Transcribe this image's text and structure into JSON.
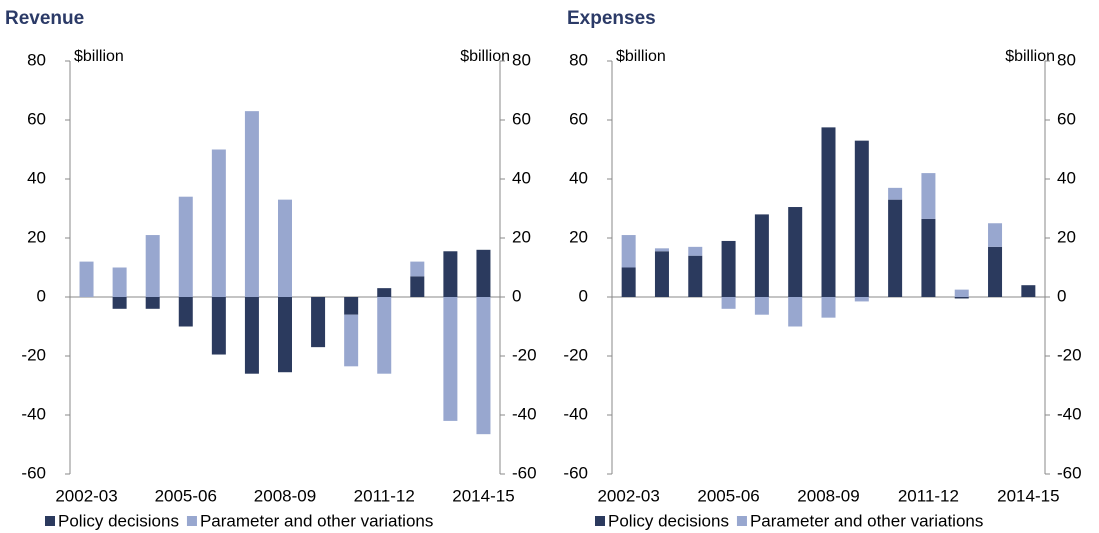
{
  "chart_data": [
    {
      "type": "bar",
      "stacked": true,
      "title": "Revenue",
      "y_label": "$billion",
      "y2_label": "$billion",
      "categories": [
        "2002-03",
        null,
        null,
        "2005-06",
        null,
        null,
        "2008-09",
        null,
        null,
        "2011-12",
        null,
        null,
        "2014-15"
      ],
      "series": [
        {
          "name": "Policy decisions",
          "color": "#2b3a5e",
          "values": [
            0,
            -4,
            -4,
            -10,
            -19.5,
            -26,
            -25.5,
            -17,
            -6,
            3,
            7,
            15.5,
            16
          ]
        },
        {
          "name": "Parameter and other variations",
          "color": "#98a7cf",
          "values": [
            12,
            10,
            21,
            34,
            50,
            63,
            33,
            0,
            -17.5,
            -26,
            5,
            -42,
            -46.5
          ]
        }
      ],
      "ylim": [
        -60,
        80
      ],
      "yticks": [
        -60,
        -40,
        -20,
        0,
        20,
        40,
        60,
        80
      ],
      "y2lim": [
        -60,
        80
      ],
      "y2ticks": [
        -60,
        -40,
        -20,
        0,
        20,
        40,
        60,
        80
      ]
    },
    {
      "type": "bar",
      "stacked": true,
      "title": "Expenses",
      "y_label": "$billion",
      "y2_label": "$billion",
      "categories": [
        "2002-03",
        null,
        null,
        "2005-06",
        null,
        null,
        "2008-09",
        null,
        null,
        "2011-12",
        null,
        null,
        "2014-15"
      ],
      "series": [
        {
          "name": "Policy decisions",
          "color": "#2b3a5e",
          "values": [
            10,
            15.5,
            14,
            19,
            28,
            30.5,
            57.5,
            53,
            33,
            26.5,
            -0.5,
            17,
            4
          ]
        },
        {
          "name": "Parameter and other variations",
          "color": "#98a7cf",
          "values": [
            11,
            1,
            3,
            -4,
            -6,
            -10,
            -7,
            -1.5,
            4,
            15.5,
            2.5,
            8,
            0
          ]
        }
      ],
      "ylim": [
        -60,
        80
      ],
      "yticks": [
        -60,
        -40,
        -20,
        0,
        20,
        40,
        60,
        80
      ],
      "y2lim": [
        -60,
        80
      ],
      "y2ticks": [
        -60,
        -40,
        -20,
        0,
        20,
        40,
        60,
        80
      ]
    }
  ]
}
